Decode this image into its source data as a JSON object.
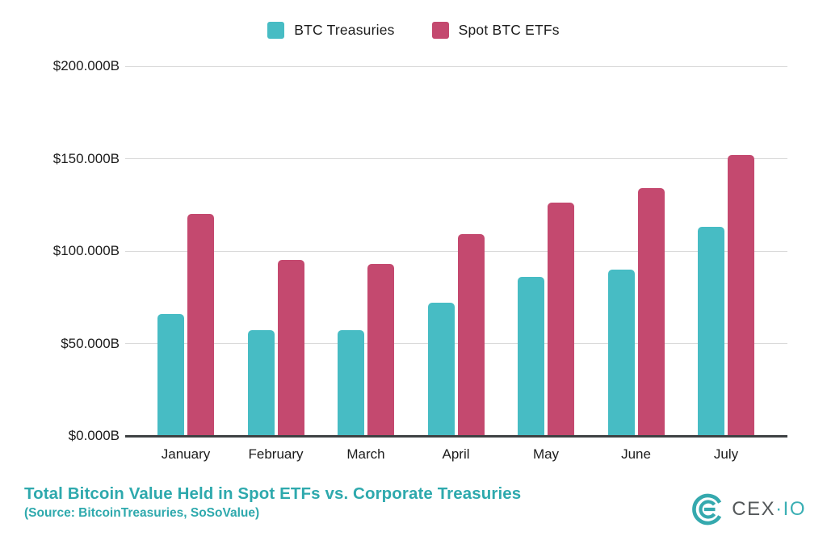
{
  "chart_data": {
    "type": "bar",
    "title": "Total Bitcoin Value Held in Spot ETFs vs. Corporate Treasuries",
    "subtitle": "(Source: BitcoinTreasuries, SoSoValue)",
    "categories": [
      "January",
      "February",
      "March",
      "April",
      "May",
      "June",
      "July"
    ],
    "series": [
      {
        "name": "BTC Treasuries",
        "color": "#47bcc4",
        "values": [
          66,
          57,
          57,
          72,
          86,
          90,
          113
        ]
      },
      {
        "name": "Spot BTC ETFs",
        "color": "#c4496f",
        "values": [
          120,
          95,
          93,
          109,
          126,
          134,
          152
        ]
      }
    ],
    "unit": "USD billions",
    "ylim": [
      0,
      200
    ],
    "yticks": [
      {
        "label": "$0.000B",
        "value": 0
      },
      {
        "label": "$50.000B",
        "value": 50
      },
      {
        "label": "$100.000B",
        "value": 100
      },
      {
        "label": "$150.000B",
        "value": 150
      },
      {
        "label": "$200.000B",
        "value": 200
      }
    ],
    "grid": true,
    "legend_position": "top"
  },
  "footer": {
    "title": "Total Bitcoin Value Held in Spot ETFs vs. Corporate Treasuries",
    "source": "(Source: BitcoinTreasuries, SoSoValue)"
  },
  "branding": {
    "name": "CEX.IO",
    "text_primary": "CEX",
    "separator": "·",
    "text_secondary": "IO",
    "logo_color": "#35a9ae"
  },
  "colors": {
    "treasuries": "#47bcc4",
    "etfs": "#c4496f",
    "gridline": "#dadada",
    "axis": "#3e4143",
    "accent_teal": "#2ea9ad",
    "text": "#1c1c1c"
  }
}
